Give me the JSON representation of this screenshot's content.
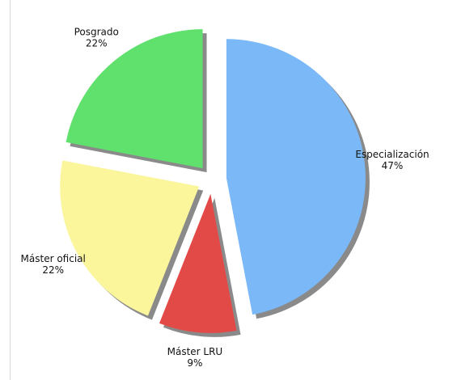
{
  "chart_data": {
    "type": "pie",
    "categories": [
      "Especialización",
      "Máster LRU",
      "Máster oficial",
      "Posgrado"
    ],
    "values": [
      47,
      9,
      22,
      22
    ],
    "value_labels": [
      "47%",
      "9%",
      "22%",
      "22%"
    ],
    "colors": [
      "#7ab8f7",
      "#e24a48",
      "#fbf59c",
      "#60e06c"
    ]
  }
}
